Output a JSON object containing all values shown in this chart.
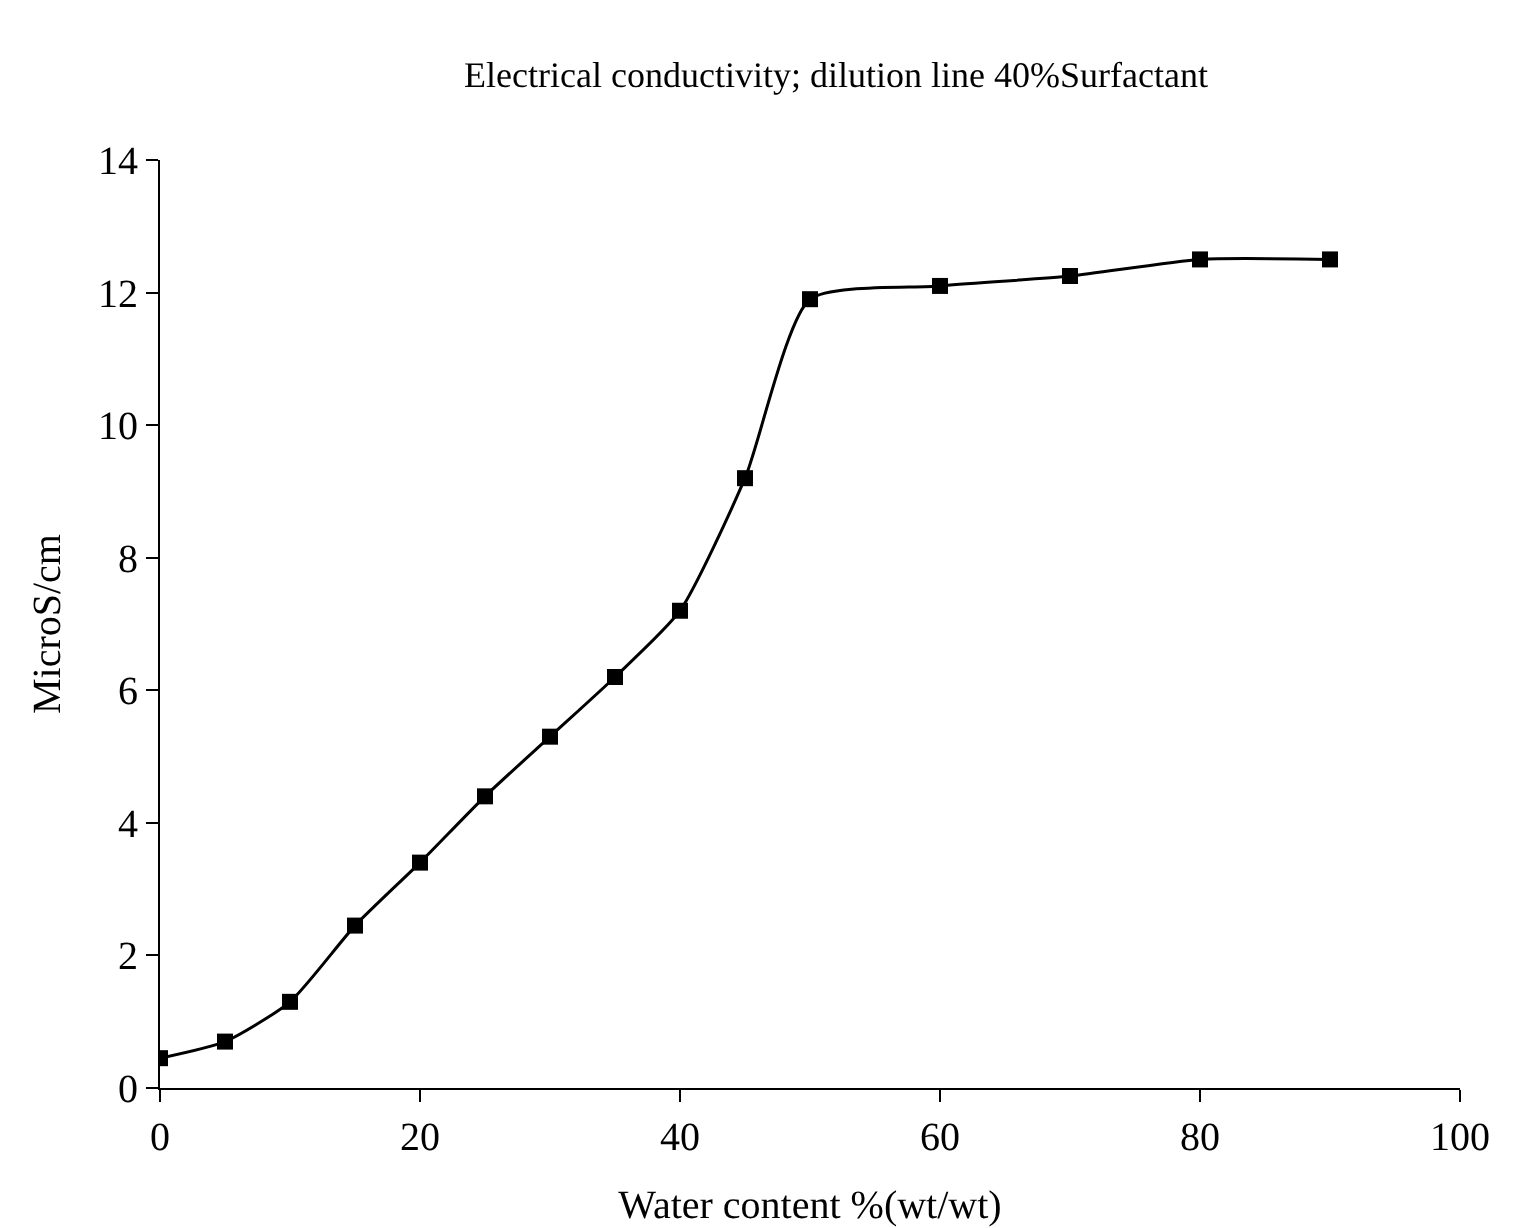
{
  "chart_data": {
    "type": "line",
    "title": "Electrical conductivity; dilution line 40%Surfactant",
    "xlabel": "Water content %(wt/wt)",
    "ylabel": "MicroS/cm",
    "x": [
      0,
      5,
      10,
      15,
      20,
      25,
      30,
      35,
      40,
      45,
      50,
      60,
      70,
      80,
      90
    ],
    "series": [
      {
        "color": "#000000",
        "values": [
          0.45,
          0.7,
          1.3,
          2.45,
          3.4,
          4.4,
          5.3,
          6.2,
          7.2,
          9.2,
          11.9,
          12.1,
          12.25,
          12.5,
          12.5
        ]
      }
    ],
    "xlim": [
      0,
      100
    ],
    "xticks": [
      0,
      20,
      40,
      60,
      80,
      100
    ],
    "ylim": [
      0,
      14
    ],
    "yticks": [
      0,
      2,
      4,
      6,
      8,
      10,
      12,
      14
    ],
    "grid": false,
    "legend": false,
    "marker": "square",
    "line_style": "solid"
  }
}
